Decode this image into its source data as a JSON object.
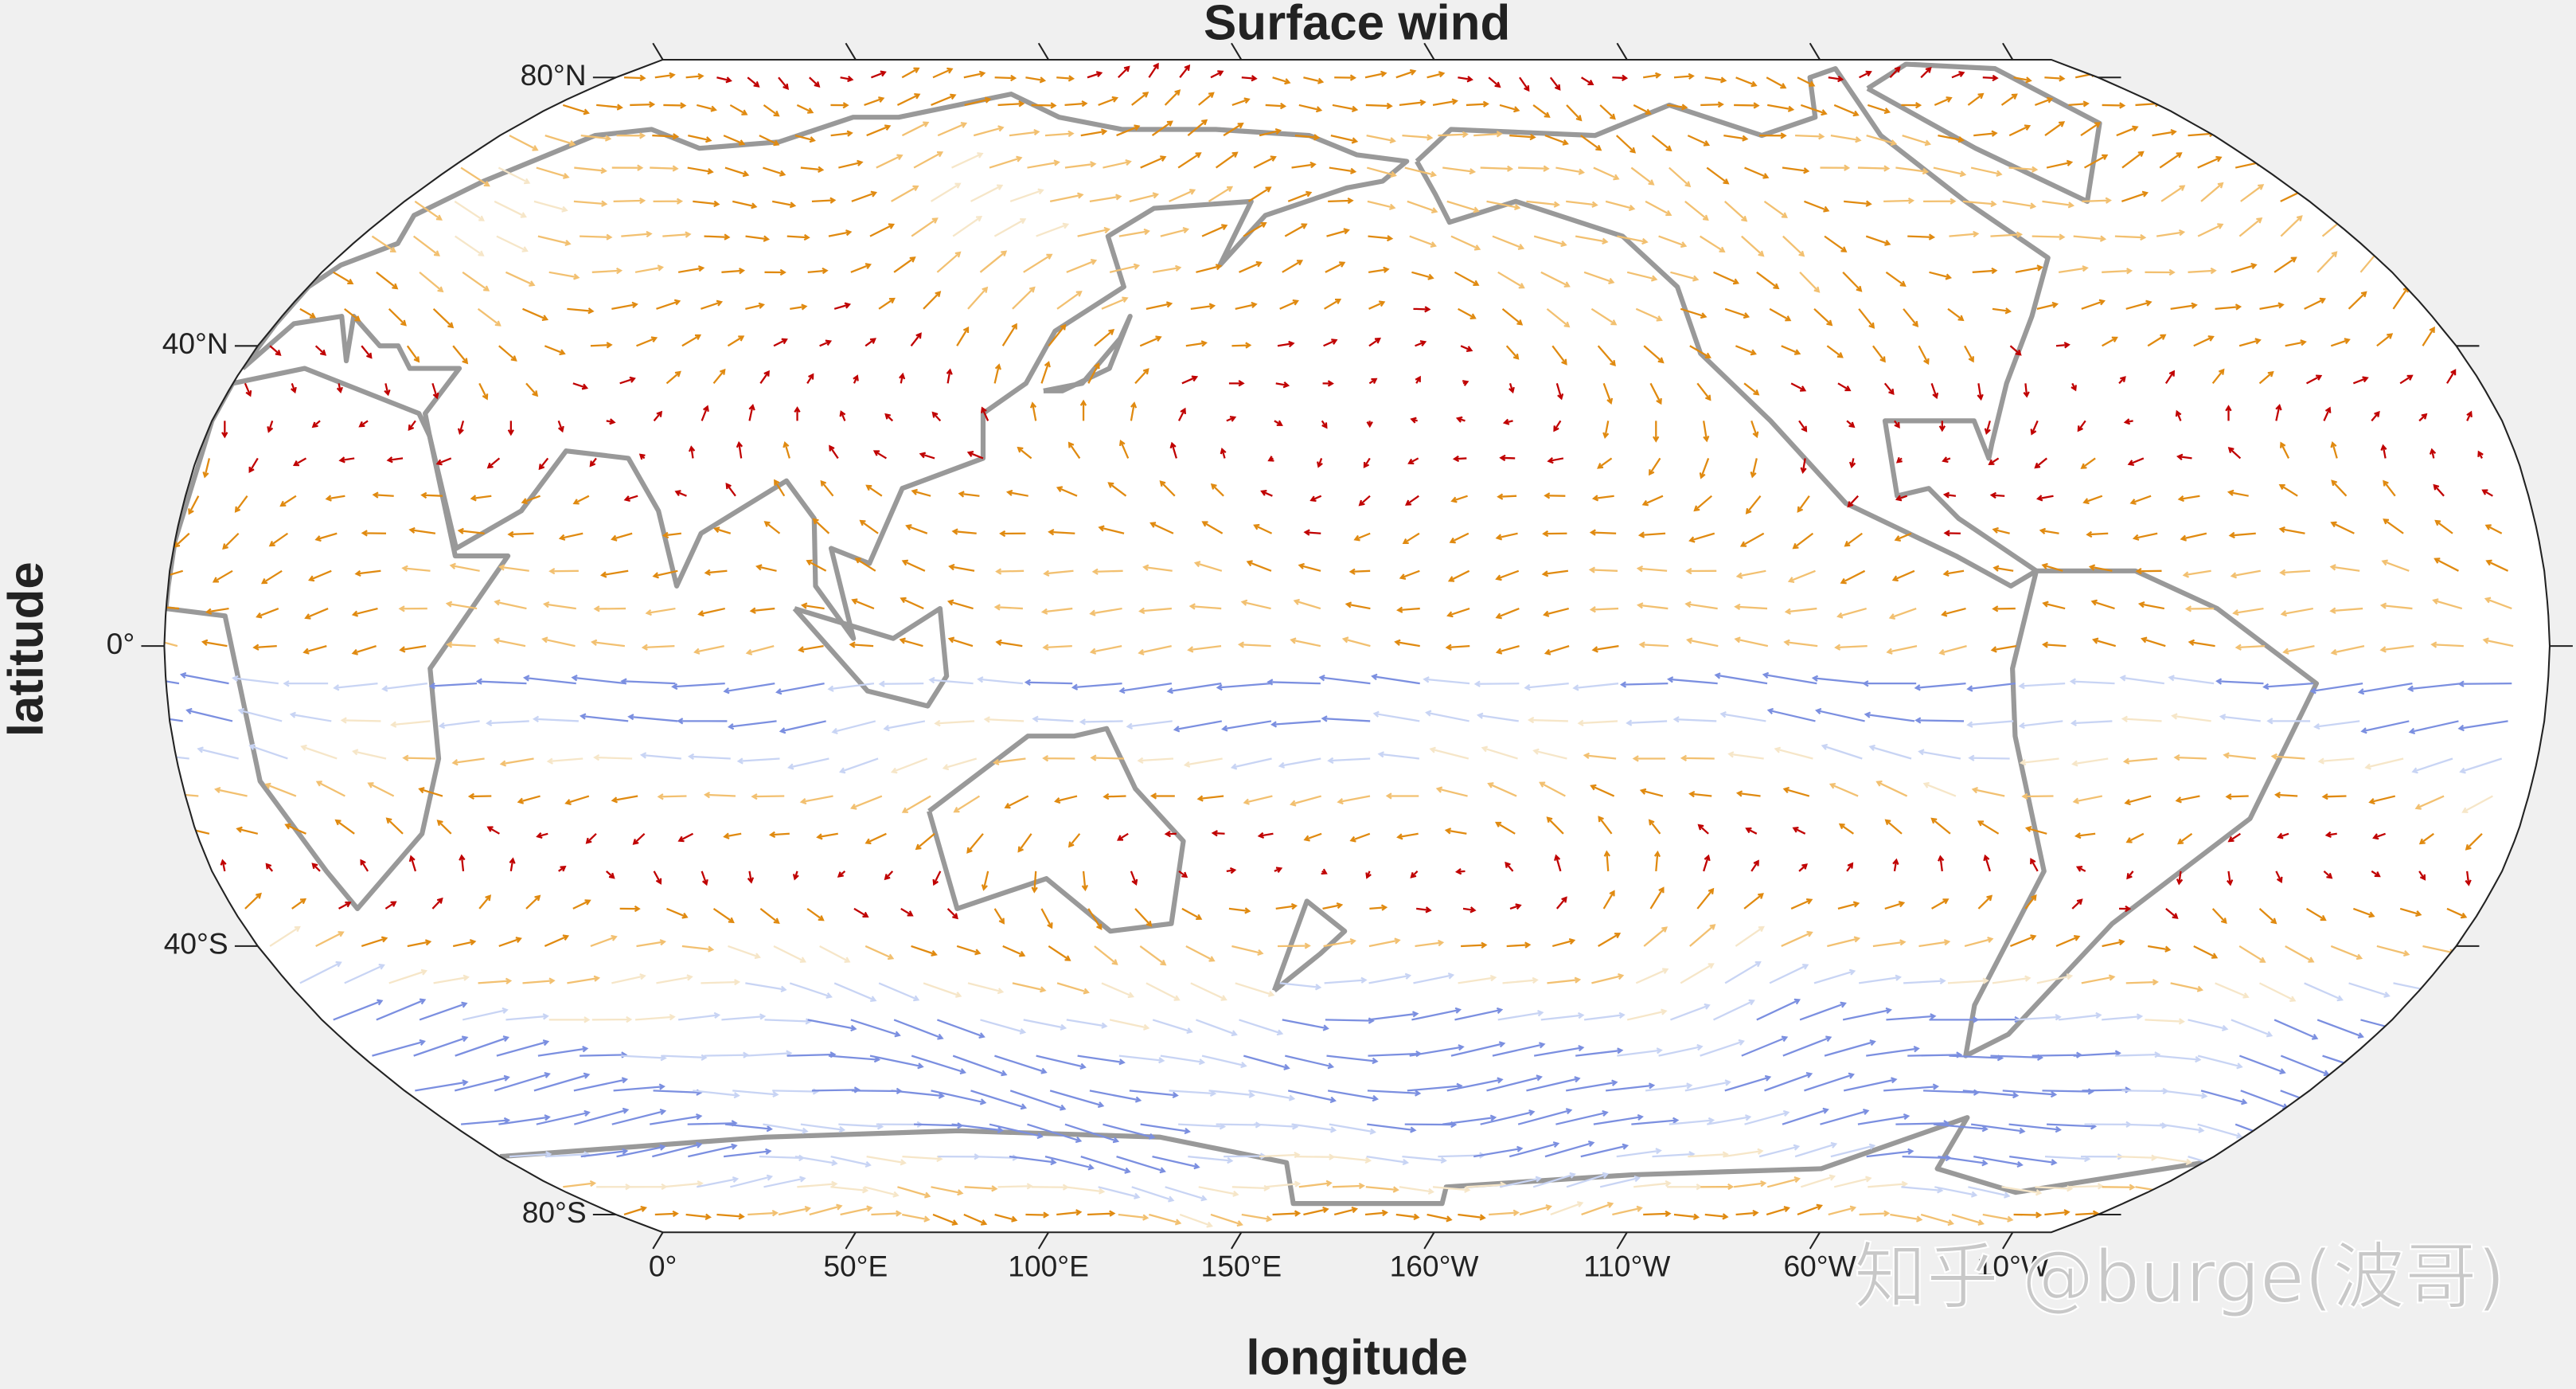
{
  "map": {
    "title": "Surface wind",
    "x_label": "longitude",
    "y_label": "latitude",
    "lon_ticks": [
      {
        "value": 0,
        "label": "0°"
      },
      {
        "value": 50,
        "label": "50°E"
      },
      {
        "value": 100,
        "label": "100°E"
      },
      {
        "value": 150,
        "label": "150°E"
      },
      {
        "value": 200,
        "label": "160°W"
      },
      {
        "value": 250,
        "label": "110°W"
      },
      {
        "value": 300,
        "label": "60°W"
      },
      {
        "value": 350,
        "label": "10°W"
      }
    ],
    "lat_ticks": [
      {
        "value": 80,
        "label": "80°N"
      },
      {
        "value": 40,
        "label": "40°N"
      },
      {
        "value": 0,
        "label": "0°"
      },
      {
        "value": -40,
        "label": "40°S"
      },
      {
        "value": -80,
        "label": "80°S"
      }
    ]
  },
  "watermark": "知乎 @burge(波哥)"
}
